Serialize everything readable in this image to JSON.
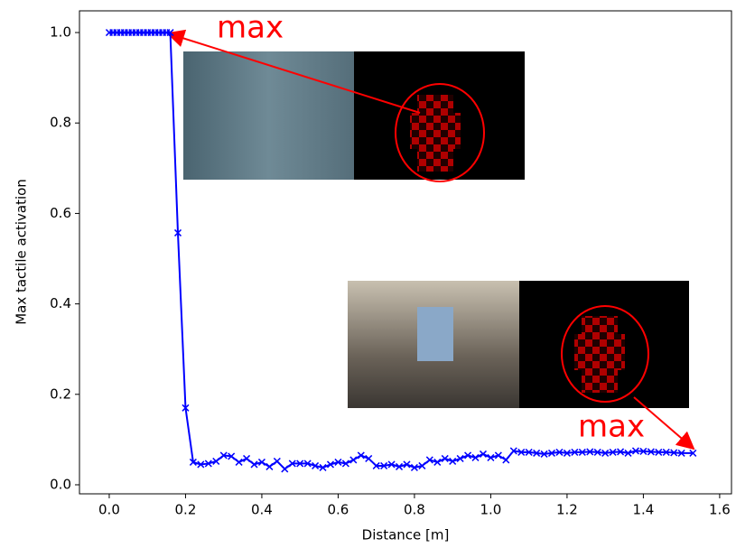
{
  "chart_data": {
    "type": "line",
    "x_label": "Distance [m]",
    "y_label": "Max tactile activation",
    "x": [
      0.0,
      0.01,
      0.02,
      0.03,
      0.04,
      0.05,
      0.06,
      0.07,
      0.08,
      0.09,
      0.1,
      0.11,
      0.12,
      0.13,
      0.14,
      0.15,
      0.16,
      0.18,
      0.2,
      0.22,
      0.24,
      0.26,
      0.28,
      0.3,
      0.32,
      0.34,
      0.36,
      0.38,
      0.4,
      0.42,
      0.44,
      0.46,
      0.48,
      0.5,
      0.52,
      0.54,
      0.56,
      0.58,
      0.6,
      0.62,
      0.64,
      0.66,
      0.68,
      0.7,
      0.72,
      0.74,
      0.76,
      0.78,
      0.8,
      0.82,
      0.84,
      0.86,
      0.88,
      0.9,
      0.92,
      0.94,
      0.96,
      0.98,
      1.0,
      1.02,
      1.04,
      1.06,
      1.08,
      1.1,
      1.12,
      1.14,
      1.16,
      1.18,
      1.2,
      1.22,
      1.24,
      1.26,
      1.28,
      1.3,
      1.32,
      1.34,
      1.36,
      1.38,
      1.4,
      1.42,
      1.44,
      1.46,
      1.48,
      1.5,
      1.53
    ],
    "series": [
      {
        "name": "Max tactile activation",
        "color": "#0000ff",
        "marker": "x",
        "values": [
          1.0,
          1.0,
          1.0,
          1.0,
          1.0,
          1.0,
          1.0,
          1.0,
          1.0,
          1.0,
          1.0,
          1.0,
          1.0,
          1.0,
          1.0,
          1.0,
          1.0,
          0.557,
          0.17,
          0.05,
          0.045,
          0.047,
          0.052,
          0.065,
          0.063,
          0.05,
          0.058,
          0.045,
          0.05,
          0.04,
          0.052,
          0.035,
          0.047,
          0.047,
          0.047,
          0.042,
          0.038,
          0.045,
          0.05,
          0.047,
          0.055,
          0.065,
          0.058,
          0.042,
          0.042,
          0.045,
          0.04,
          0.045,
          0.038,
          0.042,
          0.055,
          0.05,
          0.058,
          0.052,
          0.058,
          0.065,
          0.06,
          0.068,
          0.06,
          0.065,
          0.055,
          0.075,
          0.072,
          0.072,
          0.07,
          0.068,
          0.07,
          0.072,
          0.07,
          0.072,
          0.072,
          0.073,
          0.072,
          0.07,
          0.072,
          0.073,
          0.07,
          0.075,
          0.074,
          0.073,
          0.072,
          0.072,
          0.071,
          0.07,
          0.07
        ]
      }
    ],
    "annotations": [
      "max",
      "max"
    ],
    "xlim": [
      -0.078,
      1.631
    ],
    "ylim": [
      -0.02,
      1.048
    ],
    "xticks": [
      {
        "value": 0,
        "label": "0.0"
      },
      {
        "value": 0.2,
        "label": "0.2"
      },
      {
        "value": 0.4,
        "label": "0.4"
      },
      {
        "value": 0.6,
        "label": "0.6"
      },
      {
        "value": 0.8,
        "label": "0.8"
      },
      {
        "value": 1,
        "label": "1.0"
      },
      {
        "value": 1.2,
        "label": "1.2"
      },
      {
        "value": 1.4,
        "label": "1.4"
      },
      {
        "value": 1.6,
        "label": "1.6"
      }
    ],
    "yticks": [
      {
        "value": 0,
        "label": "0.0"
      },
      {
        "value": 0.2,
        "label": "0.2"
      },
      {
        "value": 0.4,
        "label": "0.4"
      },
      {
        "value": 0.6,
        "label": "0.6"
      },
      {
        "value": 0.8,
        "label": "0.8"
      },
      {
        "value": 1,
        "label": "1.0"
      }
    ],
    "grid": false
  }
}
